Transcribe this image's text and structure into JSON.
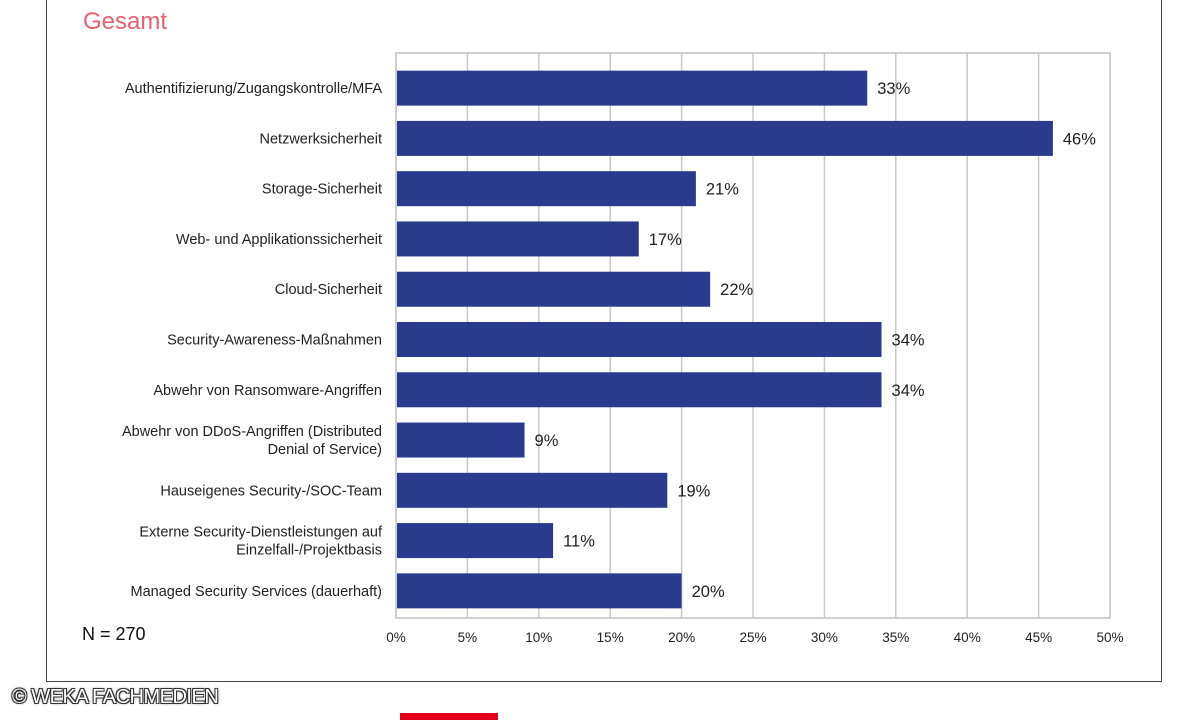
{
  "subtitle": "Gesamt",
  "sample_size": "N = 270",
  "copyright": "© WEKA FACHMEDIEN",
  "colors": {
    "bar": "#2a3a8c",
    "subtitle": "#e8606e",
    "grid": "#c8c8c8"
  },
  "chart_data": {
    "type": "bar",
    "orientation": "horizontal",
    "title": "Gesamt",
    "categories": [
      [
        "Authentifizierung/Zugangskontrolle/MFA"
      ],
      [
        "Netzwerksicherheit"
      ],
      [
        "Storage-Sicherheit"
      ],
      [
        "Web- und Applikationssicherheit"
      ],
      [
        "Cloud-Sicherheit"
      ],
      [
        "Security-Awareness-Maßnahmen"
      ],
      [
        "Abwehr von Ransomware-Angriffen"
      ],
      [
        "Abwehr von DDoS-Angriffen (Distributed",
        "Denial of Service)"
      ],
      [
        "Hauseigenes Security-/SOC-Team"
      ],
      [
        "Externe Security-Dienstleistungen auf",
        "Einzelfall-/Projektbasis"
      ],
      [
        "Managed Security Services (dauerhaft)"
      ]
    ],
    "values": [
      33,
      46,
      21,
      17,
      22,
      34,
      34,
      9,
      19,
      11,
      20
    ],
    "value_labels": [
      "33%",
      "46%",
      "21%",
      "17%",
      "22%",
      "34%",
      "34%",
      "9%",
      "19%",
      "11%",
      "20%"
    ],
    "xlim": [
      0,
      50
    ],
    "xticks": [
      "0%",
      "5%",
      "10%",
      "15%",
      "20%",
      "25%",
      "30%",
      "35%",
      "40%",
      "45%",
      "50%"
    ],
    "grid": true
  }
}
